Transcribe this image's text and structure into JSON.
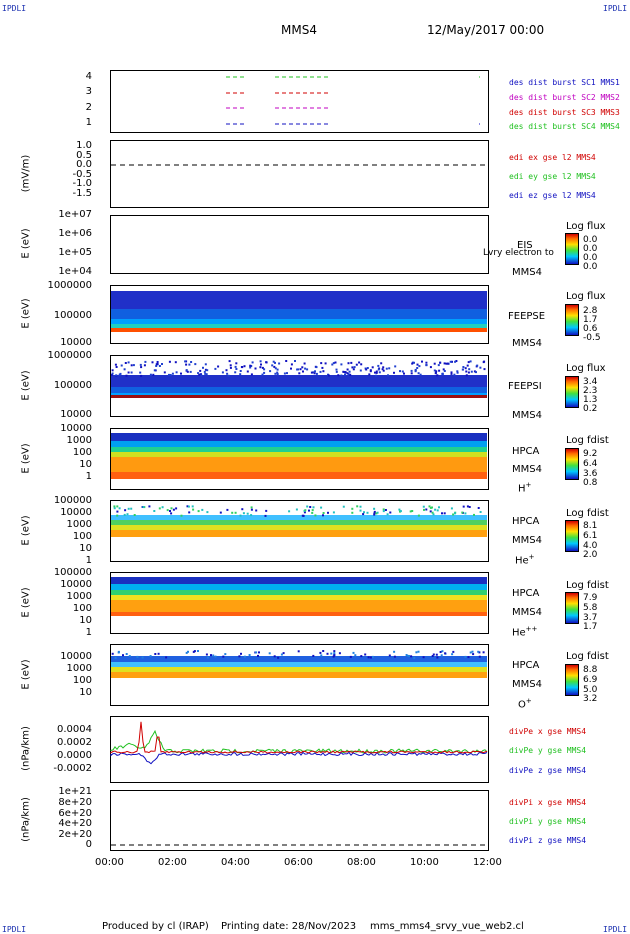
{
  "corners": {
    "tl": "IPDLI",
    "tr": "IPDLI",
    "bl": "IPDLI",
    "br": "IPDLI"
  },
  "header": {
    "spacecraft": "MMS4",
    "datetime": "12/May/2017 00:00"
  },
  "x_ticks": [
    "00:00",
    "02:00",
    "04:00",
    "06:00",
    "08:00",
    "10:00",
    "12:00"
  ],
  "footer": {
    "producer": "Produced by cl (IRAP)",
    "printing": "Printing date: 28/Nov/2023",
    "file": "mms_mms4_srvy_vue_web2.cl"
  },
  "colors": {
    "sc1": "#1010c0",
    "sc2": "#c000c0",
    "sc3": "#d00000",
    "sc4": "#20c020",
    "red": "#d00000",
    "green": "#20c020",
    "blue": "#1010c0"
  },
  "panels": {
    "burst": {
      "yticks": [
        "4",
        "3",
        "2",
        "1"
      ],
      "legend": [
        "des dist burst SC1 MMS1",
        "des dist burst SC2 MMS2",
        "des dist burst SC3 MMS3",
        "des dist burst SC4 MMS4"
      ]
    },
    "edi": {
      "ylabel": "(mV/m)",
      "yticks": [
        "1.0",
        "0.5",
        "0.0",
        "-0.5",
        "-1.0",
        "-1.5"
      ],
      "legend": [
        "edi ex gse l2 MMS4",
        "edi ey gse l2 MMS4",
        "edi ez gse l2 MMS4"
      ]
    },
    "eis": {
      "ylabel": "E (eV)",
      "yticks": [
        "1e+07",
        "1e+06",
        "1e+05",
        "1e+04"
      ],
      "inst": "EIS",
      "overlay": "Lvry electron to",
      "sc": "MMS4",
      "cbar_title": "Log flux",
      "cbar_vals": [
        "0.0",
        "0.0",
        "0.0",
        "0.0"
      ]
    },
    "feepse": {
      "ylabel": "E (eV)",
      "yticks": [
        "1000000",
        "100000",
        "10000"
      ],
      "inst": "FEEPSE",
      "sc": "MMS4",
      "cbar_title": "Log flux",
      "cbar_vals": [
        "2.8",
        "1.7",
        "0.6",
        "-0.5"
      ]
    },
    "feepsi": {
      "ylabel": "E (eV)",
      "yticks": [
        "1000000",
        "100000",
        "10000"
      ],
      "inst": "FEEPSI",
      "sc": "MMS4",
      "cbar_title": "Log flux",
      "cbar_vals": [
        "3.4",
        "2.3",
        "1.3",
        "0.2"
      ]
    },
    "hpca_h": {
      "ylabel": "E (eV)",
      "yticks": [
        "10000",
        "1000",
        "100",
        "10",
        "1"
      ],
      "inst": "HPCA",
      "sc": "MMS4",
      "species": "H",
      "charge": "+",
      "cbar_title": "Log fdist",
      "cbar_vals": [
        "9.2",
        "6.4",
        "3.6",
        "0.8"
      ]
    },
    "hpca_he": {
      "ylabel": "E (eV)",
      "yticks": [
        "100000",
        "10000",
        "1000",
        "100",
        "10",
        "1"
      ],
      "inst": "HPCA",
      "sc": "MMS4",
      "species": "He",
      "charge": "+",
      "cbar_title": "Log fdist",
      "cbar_vals": [
        "8.1",
        "6.1",
        "4.0",
        "2.0"
      ]
    },
    "hpca_hepp": {
      "ylabel": "E (eV)",
      "yticks": [
        "100000",
        "10000",
        "1000",
        "100",
        "10",
        "1"
      ],
      "inst": "HPCA",
      "sc": "MMS4",
      "species": "He",
      "charge": "++",
      "cbar_title": "Log fdist",
      "cbar_vals": [
        "7.9",
        "5.8",
        "3.7",
        "1.7"
      ]
    },
    "hpca_o": {
      "ylabel": "E (eV)",
      "yticks": [
        "10000",
        "1000",
        "100",
        "10"
      ],
      "inst": "HPCA",
      "sc": "MMS4",
      "species": "O",
      "charge": "+",
      "cbar_title": "Log fdist",
      "cbar_vals": [
        "8.8",
        "6.9",
        "5.0",
        "3.2"
      ]
    },
    "divpe": {
      "ylabel": "(nPa/km)",
      "yticks": [
        "0.0004",
        "0.0002",
        "0.0000",
        "-0.0002"
      ],
      "legend": [
        "divPe x gse MMS4",
        "divPe y gse MMS4",
        "divPe z gse MMS4"
      ]
    },
    "divpi": {
      "ylabel": "(nPa/km)",
      "yticks": [
        "1e+21",
        "8e+20",
        "6e+20",
        "4e+20",
        "2e+20",
        "0"
      ],
      "legend": [
        "divPi x gse MMS4",
        "divPi y gse MMS4",
        "divPi z gse MMS4"
      ]
    }
  },
  "chart_data": {
    "type": "line",
    "title": "MMS4",
    "x": [
      "00:00",
      "02:00",
      "04:00",
      "06:00",
      "08:00",
      "10:00",
      "12:00"
    ],
    "xlim": [
      "00:00",
      "12:00"
    ],
    "series": [
      {
        "name": "divPe x gse MMS4",
        "values": [
          0.0,
          5e-05,
          0.0,
          0.0,
          0.0,
          0.0,
          0.0
        ]
      },
      {
        "name": "divPe y gse MMS4",
        "values": [
          8e-05,
          0.0002,
          3e-05,
          2e-05,
          2e-05,
          3e-05,
          2e-05
        ]
      },
      {
        "name": "divPe z gse MMS4",
        "values": [
          -2e-05,
          -4e-05,
          -1e-05,
          -1e-05,
          -1e-05,
          -1e-05,
          -1e-05
        ]
      }
    ],
    "ylabel": "(nPa/km)",
    "ylim": [
      -0.0003,
      0.0005
    ]
  }
}
